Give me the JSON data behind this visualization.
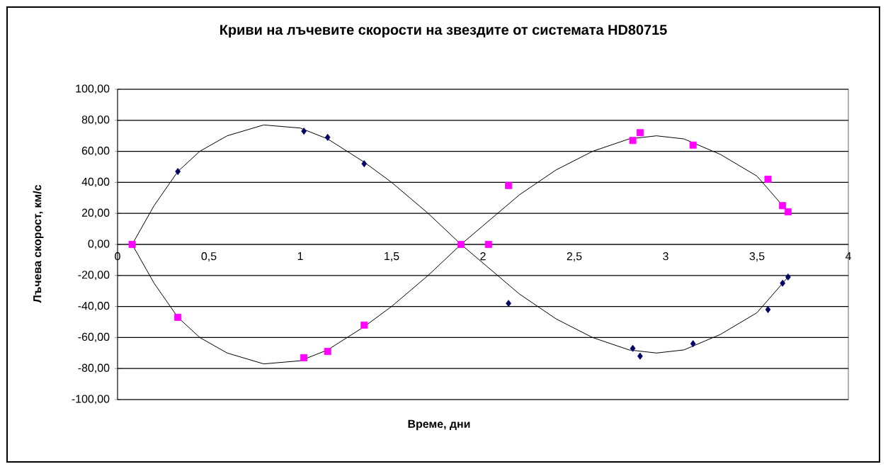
{
  "chart_data": {
    "type": "scatter",
    "title": "Криви на лъчевите скорости на звездите от системата HD80715",
    "xlabel": "Време, дни",
    "ylabel": "Лъчева скорост, км/с",
    "xlim": [
      0,
      4
    ],
    "xticks": [
      0,
      {
        "value": 0.5,
        "label": "0,5"
      },
      1,
      {
        "value": 1.5,
        "label": "1,5"
      },
      2,
      {
        "value": 2.5,
        "label": "2,5"
      },
      3,
      {
        "value": 3.5,
        "label": "3,5"
      },
      4
    ],
    "ylim": [
      -100,
      100
    ],
    "yticks": [
      {
        "value": -100,
        "label": "-100,00"
      },
      {
        "value": -80,
        "label": "-80,00"
      },
      {
        "value": -60,
        "label": "-60,00"
      },
      {
        "value": -40,
        "label": "-40,00"
      },
      {
        "value": -20,
        "label": "-20,00"
      },
      {
        "value": 0,
        "label": "0,00"
      },
      {
        "value": 20,
        "label": "20,00"
      },
      {
        "value": 40,
        "label": "40,00"
      },
      {
        "value": 60,
        "label": "60,00"
      },
      {
        "value": 80,
        "label": "80,00"
      },
      {
        "value": 100,
        "label": "100,00"
      }
    ],
    "grid": "y",
    "series": [
      {
        "type": "line",
        "color": "#000000",
        "marker": "none",
        "line_style": "solid",
        "x": [
          0.08,
          0.2,
          0.33,
          0.45,
          0.6,
          0.8,
          1.0,
          1.15,
          1.35,
          1.5,
          1.7,
          1.88,
          2.0,
          2.2,
          2.4,
          2.6,
          2.8,
          2.95,
          3.1,
          3.3,
          3.5,
          3.67
        ],
        "values": [
          0,
          25,
          47,
          60,
          70,
          77,
          75,
          68,
          53,
          40,
          20,
          0,
          -12,
          -32,
          -48,
          -60,
          -68,
          -70,
          -68,
          -58,
          -44,
          -21
        ]
      },
      {
        "type": "line",
        "color": "#000000",
        "marker": "none",
        "line_style": "solid",
        "x": [
          0.08,
          0.2,
          0.33,
          0.45,
          0.6,
          0.8,
          1.0,
          1.15,
          1.35,
          1.5,
          1.7,
          1.88,
          2.0,
          2.2,
          2.4,
          2.6,
          2.8,
          2.95,
          3.1,
          3.3,
          3.5,
          3.67
        ],
        "values": [
          0,
          -25,
          -47,
          -60,
          -70,
          -77,
          -75,
          -68,
          -53,
          -40,
          -20,
          0,
          12,
          32,
          48,
          60,
          68,
          70,
          68,
          58,
          44,
          21
        ]
      },
      {
        "color": "#000066",
        "marker": "diamond",
        "x": [
          0.33,
          1.02,
          1.15,
          1.35,
          2.14,
          2.82,
          2.86,
          3.15,
          3.56,
          3.64,
          3.67
        ],
        "values": [
          47,
          73,
          69,
          52,
          -38,
          -67,
          -72,
          -64,
          -42,
          -25,
          -21
        ]
      },
      {
        "color": "#ff00ff",
        "marker": "square",
        "x": [
          0.08,
          0.33,
          1.02,
          1.15,
          1.35,
          1.88,
          2.03,
          2.14,
          2.82,
          2.86,
          3.15,
          3.56,
          3.64,
          3.67
        ],
        "values": [
          0,
          -47,
          -73,
          -69,
          -52,
          0,
          0,
          38,
          67,
          72,
          64,
          42,
          25,
          21
        ]
      }
    ]
  }
}
